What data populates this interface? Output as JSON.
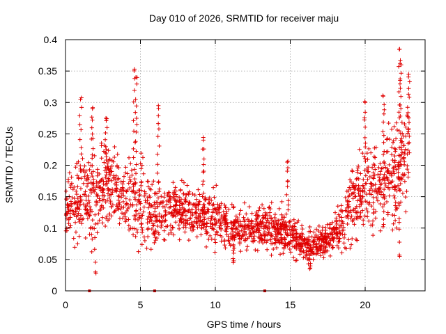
{
  "chart_data": {
    "type": "scatter",
    "title": "Day 010 of 2026, SRMTID for receiver maju",
    "xlabel": "GPS time / hours",
    "ylabel": "SRMTID / TECUs",
    "xlim": [
      0,
      24
    ],
    "ylim": [
      0,
      0.4
    ],
    "x_ticks": [
      0,
      5,
      10,
      15,
      20
    ],
    "x_tick_labels": [
      "0",
      "5",
      "10",
      "15",
      "20"
    ],
    "y_ticks": [
      0,
      0.05,
      0.1,
      0.15,
      0.2,
      0.25,
      0.3,
      0.35,
      0.4
    ],
    "y_tick_labels": [
      "0",
      "0.05",
      "0.1",
      "0.15",
      "0.2",
      "0.25",
      "0.3",
      "0.35",
      "0.4"
    ],
    "grid": true,
    "marker": "+",
    "color": "#e00000",
    "zero_markers_x": [
      1.6,
      5.95,
      13.3
    ],
    "series": [
      {
        "name": "SRMTID",
        "envelope_hours": [
          0,
          1,
          2,
          3,
          4,
          5,
          6,
          7,
          8,
          9,
          10,
          11,
          12,
          13,
          14,
          15,
          16,
          17,
          18,
          19,
          20,
          21,
          22,
          22.9
        ],
        "envelope_median": [
          0.13,
          0.14,
          0.16,
          0.17,
          0.15,
          0.14,
          0.12,
          0.13,
          0.13,
          0.12,
          0.115,
          0.1,
          0.095,
          0.1,
          0.1,
          0.09,
          0.07,
          0.075,
          0.09,
          0.13,
          0.16,
          0.17,
          0.19,
          0.22
        ],
        "envelope_spread": [
          0.05,
          0.07,
          0.08,
          0.07,
          0.06,
          0.08,
          0.05,
          0.045,
          0.04,
          0.04,
          0.045,
          0.04,
          0.035,
          0.035,
          0.04,
          0.035,
          0.025,
          0.025,
          0.035,
          0.06,
          0.07,
          0.07,
          0.09,
          0.09
        ],
        "peaks": [
          {
            "x": 1.0,
            "y": 0.305
          },
          {
            "x": 1.8,
            "y": 0.29
          },
          {
            "x": 2.7,
            "y": 0.275
          },
          {
            "x": 4.6,
            "y": 0.353
          },
          {
            "x": 4.7,
            "y": 0.34
          },
          {
            "x": 6.2,
            "y": 0.295
          },
          {
            "x": 9.2,
            "y": 0.24
          },
          {
            "x": 14.8,
            "y": 0.205
          },
          {
            "x": 20.0,
            "y": 0.3
          },
          {
            "x": 21.2,
            "y": 0.31
          },
          {
            "x": 22.3,
            "y": 0.385
          },
          {
            "x": 22.4,
            "y": 0.36
          },
          {
            "x": 22.9,
            "y": 0.345
          }
        ],
        "troughs": [
          {
            "x": 2.0,
            "y": 0.03
          },
          {
            "x": 11.2,
            "y": 0.045
          },
          {
            "x": 16.3,
            "y": 0.035
          },
          {
            "x": 22.3,
            "y": 0.055
          }
        ]
      }
    ]
  }
}
